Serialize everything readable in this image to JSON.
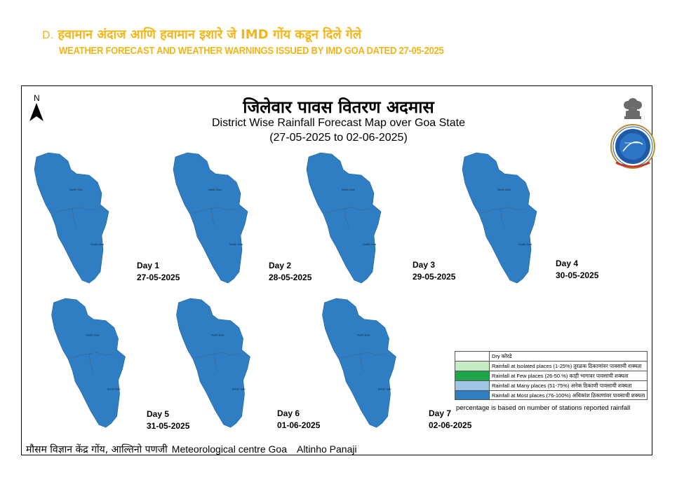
{
  "header": {
    "letter": "D.",
    "marathi": "हवामान अंदाज आणि  हवामान इशारे जे IMD गोंय कडून दिले गेले",
    "english": "WEATHER FORECAST AND WEATHER WARNINGS ISSUED BY IMD GOA DATED 27-05-2025"
  },
  "map": {
    "north_label": "N",
    "title_marathi": "जिलेवार पावस वितरण अदमास",
    "title_english": "District Wise Rainfall Forecast Map over Goa State",
    "date_range": "(27-05-2025 to 02-06-2025)",
    "fill_color": "#2f7ec4",
    "region_labels": {
      "north": "North Goa",
      "south": "South Goa"
    },
    "days": [
      {
        "day": "Day 1",
        "date": "27-05-2025"
      },
      {
        "day": "Day 2",
        "date": "28-05-2025"
      },
      {
        "day": "Day 3",
        "date": "29-05-2025"
      },
      {
        "day": "Day 4",
        "date": "30-05-2025"
      },
      {
        "day": "Day 5",
        "date": "31-05-2025"
      },
      {
        "day": "Day 6",
        "date": "01-06-2025"
      },
      {
        "day": "Day 7",
        "date": "02-06-2025"
      }
    ]
  },
  "legend": {
    "items": [
      {
        "color": "#ffffff",
        "label": "Dry कोरडे"
      },
      {
        "color": "#c7ebc4",
        "label": "Rainfall at Isolated places  (1-25%) तुरळक ठिकाणांवर पावसाची शक्यता"
      },
      {
        "color": "#1fa64a",
        "label": "Rainfall at Few places (26-50 %) काही भागावर पावसाची शक्यता"
      },
      {
        "color": "#9fc4e6",
        "label": "Rainfall at Many places (51-75%) अनेक ठिकाणी पावसाची शक्यता"
      },
      {
        "color": "#2f7ec4",
        "label": "Rainfall at Most places (76-100%) अधिकांश ठिकाणांवर पावसाची शक्यता"
      }
    ],
    "note": "percentage is based on number of stations reported rainfall"
  },
  "footer": {
    "marathi": "मौसम विज्ञान केंद्र गोंय, आल्तिनो पणजी",
    "english_center": "Meteorological centre Goa",
    "english_place": "Altinho Panaji"
  }
}
